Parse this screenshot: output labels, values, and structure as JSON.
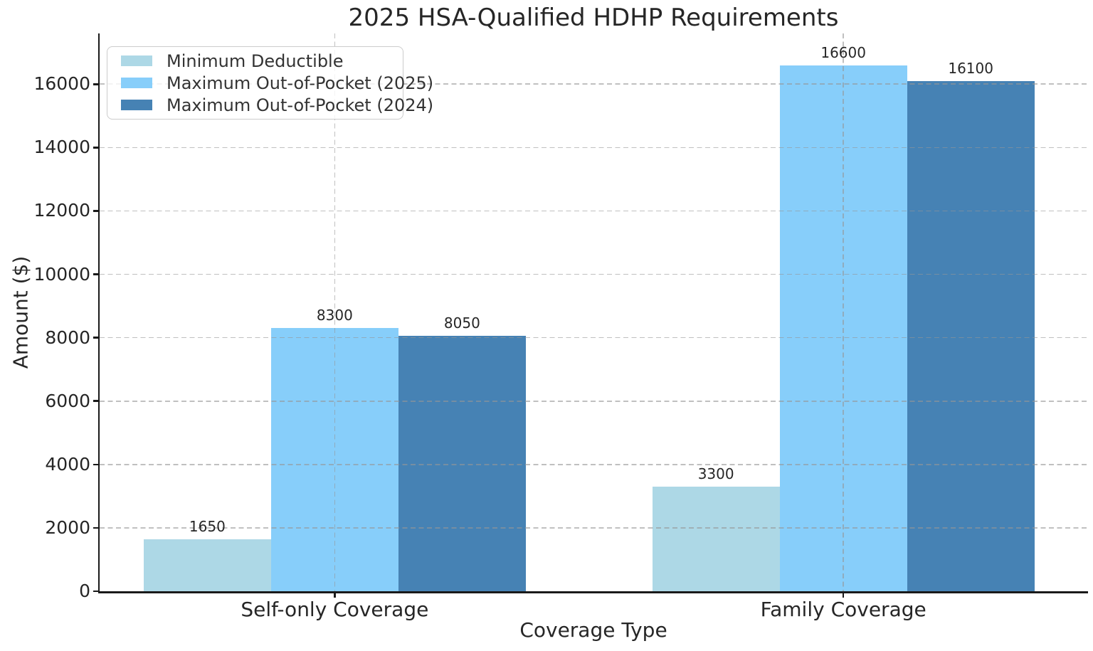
{
  "chart_data": {
    "type": "bar",
    "title": "2025 HSA-Qualified HDHP Requirements",
    "xlabel": "Coverage Type",
    "ylabel": "Amount ($)",
    "categories": [
      "Self-only Coverage",
      "Family Coverage"
    ],
    "series": [
      {
        "name": "Minimum Deductible",
        "color": "#ADD8E6",
        "values": [
          1650,
          3300
        ]
      },
      {
        "name": "Maximum Out-of-Pocket (2025)",
        "color": "#87CEFA",
        "values": [
          8300,
          16600
        ]
      },
      {
        "name": "Maximum Out-of-Pocket (2024)",
        "color": "#4682B4",
        "values": [
          8050,
          16100
        ]
      }
    ],
    "bar_labels": true,
    "yticks": [
      0,
      2000,
      4000,
      6000,
      8000,
      10000,
      12000,
      14000,
      16000
    ],
    "ylim": [
      0,
      17600
    ],
    "grid": true,
    "grid_style": "dashed",
    "grid_over_bars": true,
    "legend_position": "upper-left",
    "background": "#ffffff",
    "text_color": "#262626"
  }
}
